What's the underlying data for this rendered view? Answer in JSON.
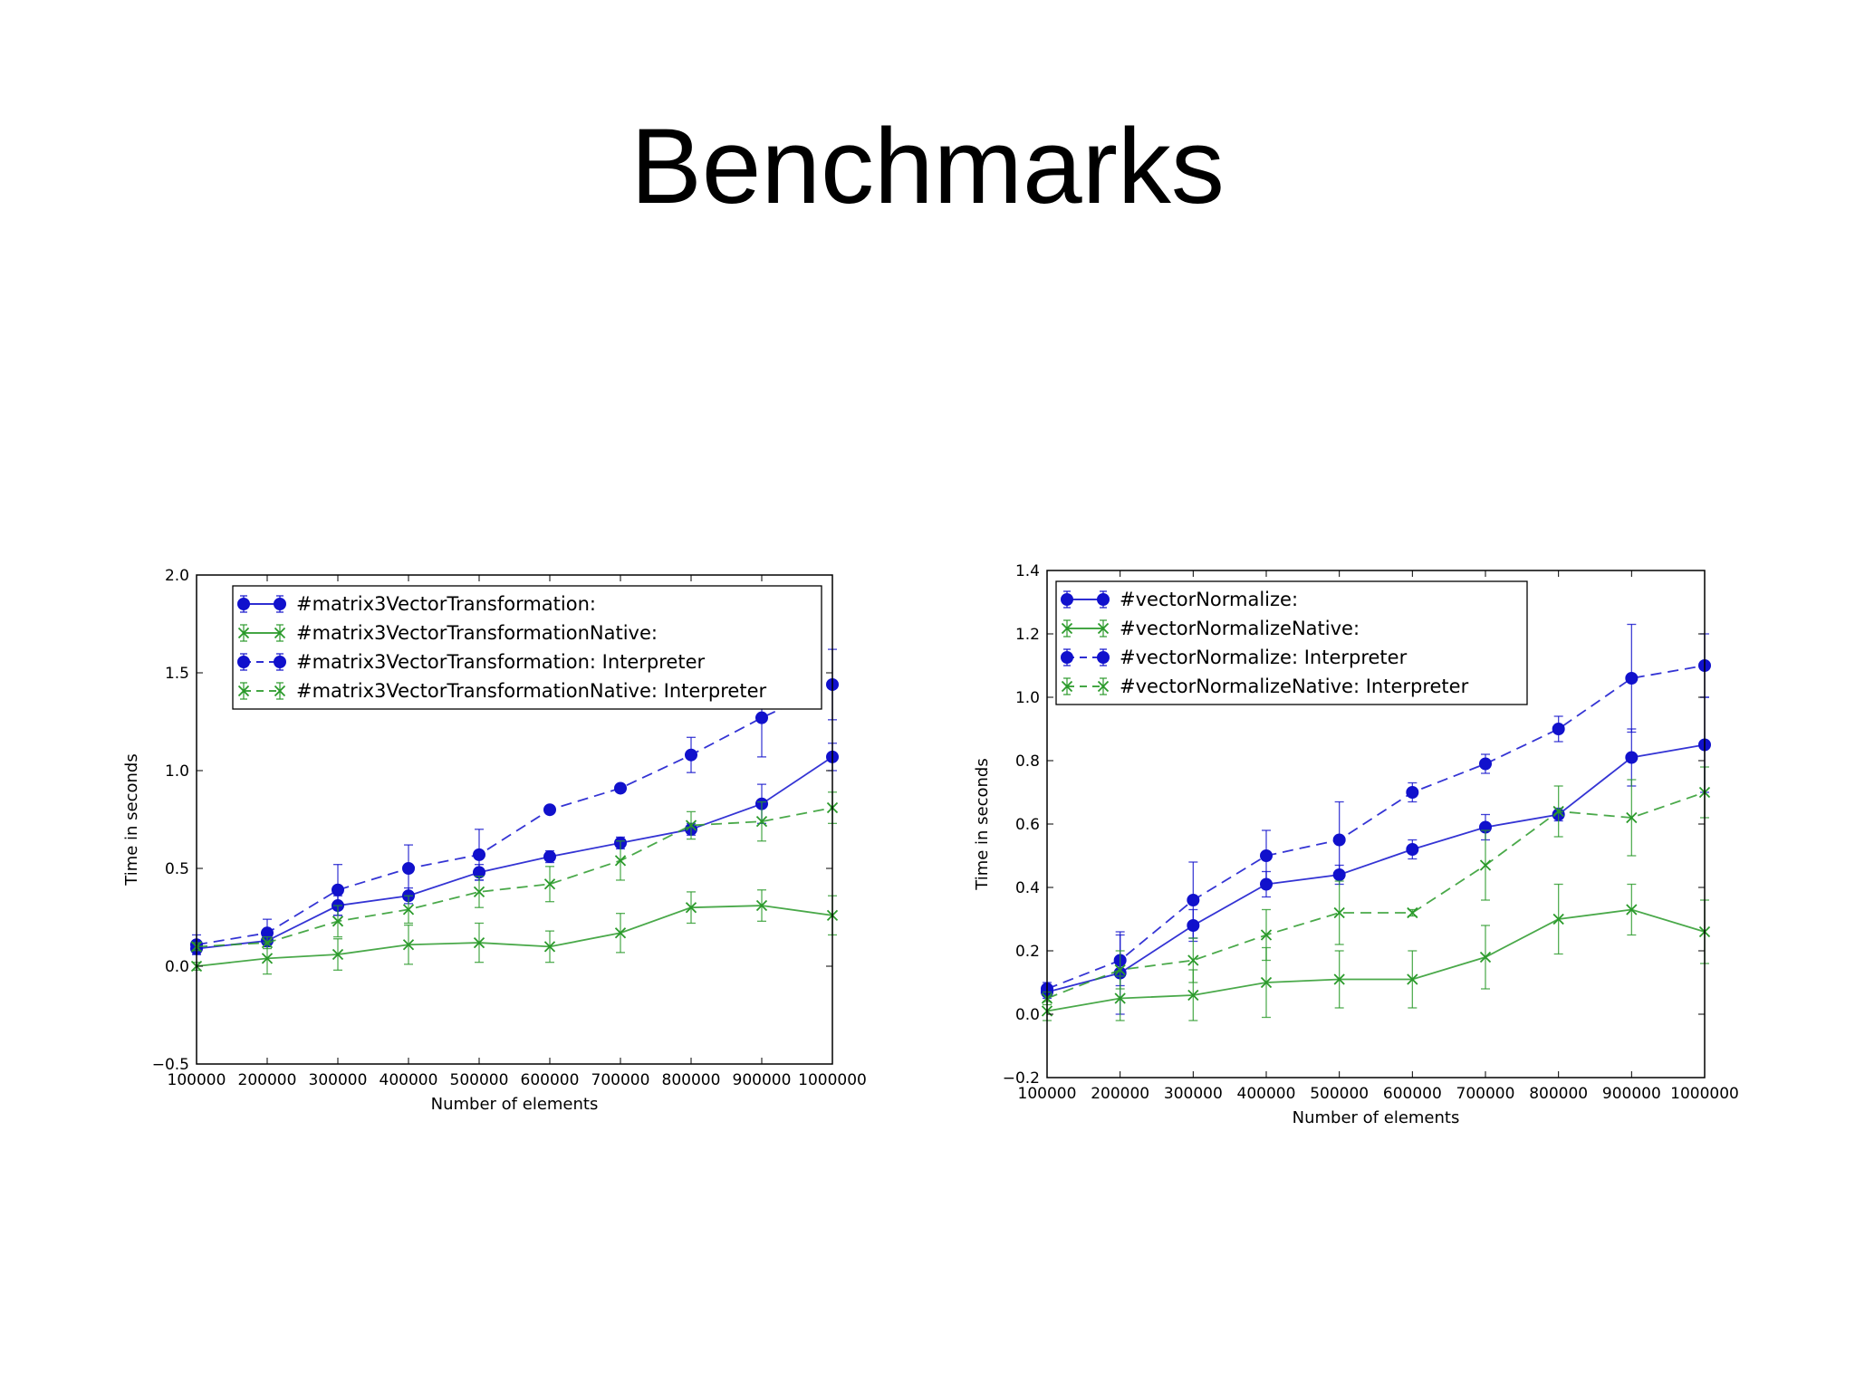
{
  "slide": {
    "title": "Benchmarks"
  },
  "colors": {
    "blue": "#1111cc",
    "green": "#2a9a2a",
    "frame": "#000000",
    "background": "#ffffff"
  },
  "chart_data": [
    {
      "type": "line",
      "title": "",
      "xlabel": "Number of elements",
      "ylabel": "Time in seconds",
      "x": [
        100000,
        200000,
        300000,
        400000,
        500000,
        600000,
        700000,
        800000,
        900000,
        1000000
      ],
      "xlim": [
        100000,
        1000000
      ],
      "ylim": [
        -0.5,
        2.0
      ],
      "xticks": [
        "100000",
        "200000",
        "300000",
        "400000",
        "500000",
        "600000",
        "700000",
        "800000",
        "900000",
        "1000000"
      ],
      "yticks": [
        "−0.5",
        "0.0",
        "0.5",
        "1.0",
        "1.5",
        "2.0"
      ],
      "ytick_values": [
        -0.5,
        0.0,
        0.5,
        1.0,
        1.5,
        2.0
      ],
      "legend_position": "top-left",
      "grid": false,
      "series": [
        {
          "name": "#matrix3VectorTransformation:",
          "color": "blue",
          "linestyle": "solid",
          "marker": "circle",
          "values": [
            0.09,
            0.13,
            0.31,
            0.36,
            0.48,
            0.56,
            0.63,
            0.7,
            0.83,
            1.07
          ],
          "errors": [
            0.03,
            0.03,
            0.05,
            0.04,
            0.04,
            0.03,
            0.03,
            0.03,
            0.1,
            0.07
          ]
        },
        {
          "name": "#matrix3VectorTransformationNative:",
          "color": "green",
          "linestyle": "solid",
          "marker": "x",
          "values": [
            0.0,
            0.04,
            0.06,
            0.11,
            0.12,
            0.1,
            0.17,
            0.3,
            0.31,
            0.26
          ],
          "errors": [
            0.02,
            0.08,
            0.08,
            0.1,
            0.1,
            0.08,
            0.1,
            0.08,
            0.08,
            0.1
          ]
        },
        {
          "name": "#matrix3VectorTransformation: Interpreter",
          "color": "blue",
          "linestyle": "dashed",
          "marker": "circle",
          "values": [
            0.11,
            0.17,
            0.39,
            0.5,
            0.57,
            0.8,
            0.91,
            1.08,
            1.27,
            1.44
          ],
          "errors": [
            0.05,
            0.07,
            0.13,
            0.12,
            0.13,
            0.02,
            0.02,
            0.09,
            0.2,
            0.18
          ]
        },
        {
          "name": "#matrix3VectorTransformationNative: Interpreter",
          "color": "green",
          "linestyle": "dashed",
          "marker": "x",
          "values": [
            0.1,
            0.12,
            0.23,
            0.29,
            0.38,
            0.42,
            0.54,
            0.72,
            0.74,
            0.81
          ],
          "errors": [
            0.02,
            0.03,
            0.08,
            0.07,
            0.08,
            0.09,
            0.1,
            0.07,
            0.1,
            0.08
          ]
        }
      ]
    },
    {
      "type": "line",
      "title": "",
      "xlabel": "Number of elements",
      "ylabel": "Time in seconds",
      "x": [
        100000,
        200000,
        300000,
        400000,
        500000,
        600000,
        700000,
        800000,
        900000,
        1000000
      ],
      "xlim": [
        100000,
        1000000
      ],
      "ylim": [
        -0.2,
        1.4
      ],
      "xticks": [
        "100000",
        "200000",
        "300000",
        "400000",
        "500000",
        "600000",
        "700000",
        "800000",
        "900000",
        "1000000"
      ],
      "yticks": [
        "−0.2",
        "0.0",
        "0.2",
        "0.4",
        "0.6",
        "0.8",
        "1.0",
        "1.2",
        "1.4"
      ],
      "ytick_values": [
        -0.2,
        0.0,
        0.2,
        0.4,
        0.6,
        0.8,
        1.0,
        1.2,
        1.4
      ],
      "legend_position": "top-left",
      "grid": false,
      "series": [
        {
          "name": "#vectorNormalize:",
          "color": "blue",
          "linestyle": "solid",
          "marker": "circle",
          "values": [
            0.07,
            0.13,
            0.28,
            0.41,
            0.44,
            0.52,
            0.59,
            0.63,
            0.81,
            0.85
          ],
          "errors": [
            0.02,
            0.13,
            0.05,
            0.04,
            0.03,
            0.03,
            0.04,
            0.02,
            0.09,
            0.15
          ]
        },
        {
          "name": "#vectorNormalizeNative:",
          "color": "green",
          "linestyle": "solid",
          "marker": "x",
          "values": [
            0.01,
            0.05,
            0.06,
            0.1,
            0.11,
            0.11,
            0.18,
            0.3,
            0.33,
            0.26
          ],
          "errors": [
            0.03,
            0.07,
            0.08,
            0.11,
            0.09,
            0.09,
            0.1,
            0.11,
            0.08,
            0.1
          ]
        },
        {
          "name": "#vectorNormalize: Interpreter",
          "color": "blue",
          "linestyle": "dashed",
          "marker": "circle",
          "values": [
            0.08,
            0.17,
            0.36,
            0.5,
            0.55,
            0.7,
            0.79,
            0.9,
            1.06,
            1.1
          ],
          "errors": [
            0.02,
            0.08,
            0.12,
            0.08,
            0.12,
            0.03,
            0.03,
            0.04,
            0.17,
            0.1
          ]
        },
        {
          "name": "#vectorNormalizeNative: Interpreter",
          "color": "green",
          "linestyle": "dashed",
          "marker": "x",
          "values": [
            0.05,
            0.14,
            0.17,
            0.25,
            0.32,
            0.32,
            0.47,
            0.64,
            0.62,
            0.7
          ],
          "errors": [
            0.02,
            0.06,
            0.07,
            0.08,
            0.1,
            0.01,
            0.11,
            0.08,
            0.12,
            0.08
          ]
        }
      ]
    }
  ]
}
